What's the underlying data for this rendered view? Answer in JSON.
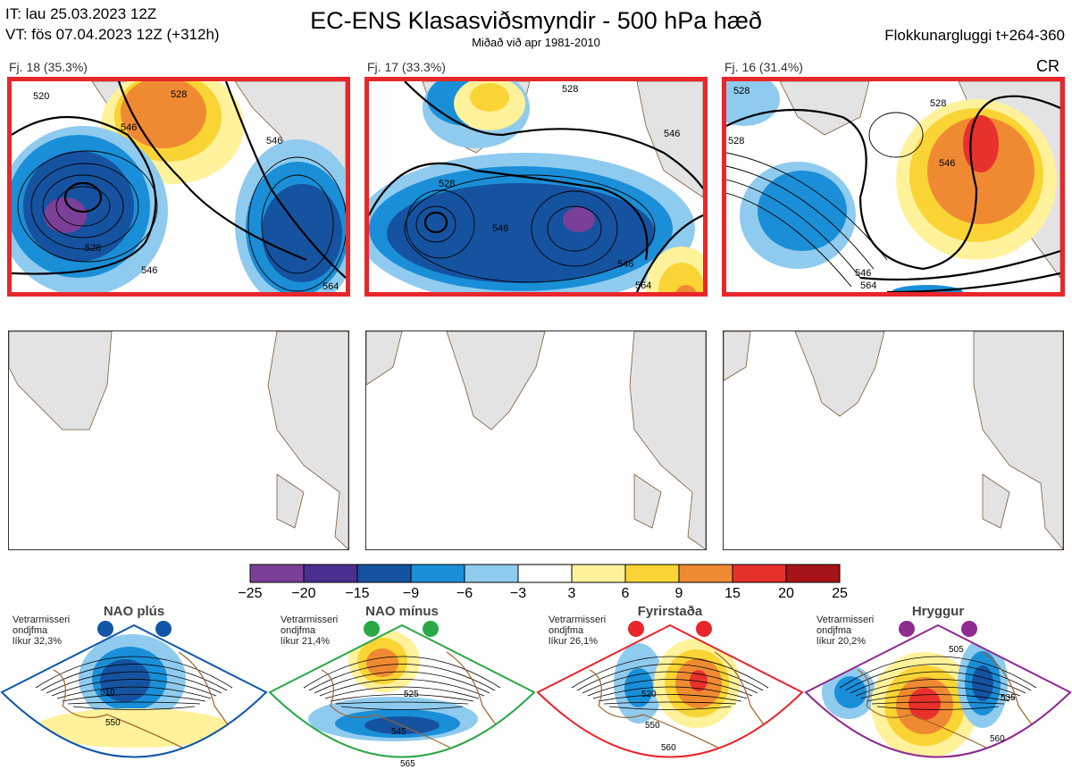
{
  "header": {
    "it_line": "IT: lau 25.03.2023 12Z",
    "vt_line": "VT: fös 07.04.2023 12Z  (+312h)",
    "title": "EC-ENS Klasasviðsmyndir - 500 hPa hæð",
    "subtitle": "Miðað við apr 1981-2010",
    "window": "Flokkunargluggi t+264-360",
    "cr": "CR"
  },
  "clusters": [
    {
      "label": "Fj. 18 (35.3%)",
      "contour_labels": [
        "520",
        "528",
        "546",
        "546",
        "546",
        "528",
        "564"
      ]
    },
    {
      "label": "Fj. 17 (33.3%)",
      "contour_labels": [
        "528",
        "528",
        "546",
        "546",
        "546",
        "564"
      ]
    },
    {
      "label": "Fj. 16 (31.4%)",
      "contour_labels": [
        "528",
        "528",
        "546",
        "528",
        "546",
        "564"
      ]
    }
  ],
  "legend": {
    "ticks": [
      "−25",
      "−20",
      "−15",
      "−9",
      "−6",
      "−3",
      "3",
      "6",
      "9",
      "15",
      "20",
      "25"
    ],
    "colors": [
      "#7b3f98",
      "#4b2e8f",
      "#1553a0",
      "#1a8fd8",
      "#8fcbee",
      "#ffffff",
      "#fff29a",
      "#f9d434",
      "#f08a32",
      "#e8312b",
      "#a6141a"
    ]
  },
  "regimes": [
    {
      "title": "NAO plús",
      "note": [
        "Vetrarmisseri",
        "ondjfma",
        "líkur 32,3%"
      ],
      "color": "#1256a8",
      "contour_labels": [
        "510",
        "550"
      ]
    },
    {
      "title": "NAO mínus",
      "note": [
        "Vetrarmisseri",
        "ondjfma",
        "líkur 21,4%"
      ],
      "color": "#2aa845",
      "contour_labels": [
        "525",
        "545",
        "565"
      ]
    },
    {
      "title": "Fyrirstaða",
      "note": [
        "Vetrarmisseri",
        "ondjfma",
        "líkur 26,1%"
      ],
      "color": "#e8262b",
      "contour_labels": [
        "520",
        "550",
        "560"
      ]
    },
    {
      "title": "Hryggur",
      "note": [
        "Vetrarmisseri",
        "ondjfma",
        "líkur 20,2%"
      ],
      "color": "#8e2c8f",
      "contour_labels": [
        "505",
        "535",
        "560"
      ]
    }
  ]
}
